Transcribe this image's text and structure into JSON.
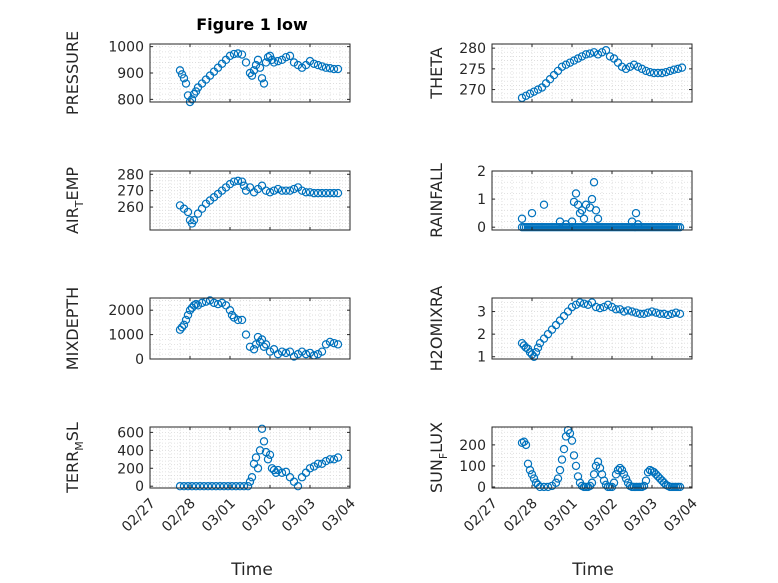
{
  "figure": {
    "title": "Figure 1 low",
    "x_axis_label": "Time",
    "x_tick_labels": [
      "02/27",
      "02/28",
      "03/01",
      "03/02",
      "03/03",
      "03/04"
    ]
  },
  "colors": {
    "marker": "#0072BD",
    "axis": "#262626",
    "grid": "#d9d9d9"
  },
  "chart_data": [
    {
      "type": "scatter",
      "ylabel_main": "PRESSURE",
      "ylabel_sub": "",
      "ylim": [
        790,
        1010
      ],
      "yticks": [
        800,
        900,
        1000
      ],
      "x_unit": "days since 02/27",
      "x": [
        0.75,
        0.8,
        0.85,
        0.9,
        0.95,
        1.0,
        1.05,
        1.1,
        1.15,
        1.2,
        1.3,
        1.4,
        1.5,
        1.6,
        1.7,
        1.8,
        1.9,
        2.0,
        2.1,
        2.2,
        2.3,
        2.4,
        2.5,
        2.55,
        2.6,
        2.65,
        2.7,
        2.75,
        2.8,
        2.85,
        2.9,
        2.95,
        3.0,
        3.05,
        3.1,
        3.2,
        3.3,
        3.4,
        3.5,
        3.6,
        3.7,
        3.8,
        3.9,
        4.0,
        4.1,
        4.2,
        4.3,
        4.4,
        4.5,
        4.6,
        4.7
      ],
      "y": [
        910,
        895,
        880,
        860,
        815,
        790,
        800,
        820,
        830,
        845,
        860,
        875,
        890,
        905,
        920,
        935,
        950,
        965,
        972,
        974,
        970,
        940,
        900,
        890,
        910,
        930,
        950,
        920,
        880,
        860,
        940,
        960,
        965,
        950,
        940,
        945,
        950,
        960,
        965,
        940,
        930,
        920,
        930,
        945,
        935,
        930,
        925,
        920,
        918,
        915,
        915
      ]
    },
    {
      "type": "scatter",
      "ylabel_main": "THETA",
      "ylabel_sub": "",
      "ylim": [
        267,
        281
      ],
      "yticks": [
        270,
        275,
        280
      ],
      "x": [
        0.75,
        0.85,
        0.95,
        1.05,
        1.15,
        1.25,
        1.35,
        1.45,
        1.55,
        1.65,
        1.75,
        1.85,
        1.95,
        2.05,
        2.15,
        2.25,
        2.35,
        2.45,
        2.55,
        2.65,
        2.75,
        2.85,
        2.95,
        3.05,
        3.15,
        3.25,
        3.35,
        3.45,
        3.55,
        3.65,
        3.75,
        3.85,
        3.95,
        4.05,
        4.15,
        4.25,
        4.35,
        4.45,
        4.55,
        4.65,
        4.75
      ],
      "y": [
        268,
        268.5,
        269,
        269.5,
        270,
        270.5,
        271.5,
        272.5,
        273.5,
        274.5,
        275.5,
        276,
        276.5,
        277,
        277.5,
        278,
        278.5,
        278.7,
        279,
        278.5,
        279,
        279.5,
        278,
        277.5,
        276.5,
        275.5,
        275,
        275.5,
        276,
        275.5,
        275,
        274.5,
        274.2,
        274,
        274,
        274,
        274.2,
        274.5,
        274.8,
        275,
        275.3
      ]
    },
    {
      "type": "scatter",
      "ylabel_main": "AIR",
      "ylabel_sub": "T",
      "ylabel_tail": "EMP",
      "ylim": [
        246,
        282
      ],
      "yticks": [
        260,
        270,
        280
      ],
      "x": [
        0.75,
        0.85,
        0.95,
        1.0,
        1.05,
        1.1,
        1.2,
        1.3,
        1.4,
        1.5,
        1.6,
        1.7,
        1.8,
        1.9,
        2.0,
        2.1,
        2.2,
        2.3,
        2.35,
        2.4,
        2.5,
        2.6,
        2.7,
        2.8,
        2.9,
        3.0,
        3.1,
        3.2,
        3.3,
        3.4,
        3.5,
        3.6,
        3.7,
        3.8,
        3.9,
        4.0,
        4.1,
        4.2,
        4.3,
        4.4,
        4.5,
        4.6,
        4.7
      ],
      "y": [
        261,
        259,
        257,
        252,
        250,
        252,
        256,
        259,
        262,
        264,
        266,
        268,
        270,
        272,
        274,
        275.5,
        276,
        275.5,
        273,
        270,
        272,
        269,
        271,
        273,
        270,
        269,
        270,
        271,
        270,
        270,
        270,
        271,
        272,
        270,
        269,
        269,
        268.5,
        268.5,
        268.5,
        268.5,
        268.5,
        268.5,
        268.5
      ]
    },
    {
      "type": "scatter",
      "ylabel_main": "RAINFALL",
      "ylabel_sub": "",
      "ylim": [
        -0.1,
        2.0
      ],
      "yticks": [
        0,
        1,
        2
      ],
      "x": [
        0.75,
        0.8,
        0.85,
        0.9,
        0.95,
        1.0,
        1.05,
        1.1,
        1.15,
        1.2,
        1.25,
        1.3,
        1.35,
        1.4,
        1.45,
        1.5,
        1.55,
        1.6,
        1.65,
        1.7,
        1.75,
        1.8,
        1.85,
        1.9,
        1.95,
        2.0,
        2.05,
        2.1,
        2.15,
        2.2,
        2.25,
        2.3,
        2.35,
        2.4,
        2.45,
        2.5,
        2.55,
        2.6,
        2.65,
        2.7,
        2.75,
        2.8,
        2.85,
        2.9,
        2.95,
        3.0,
        3.05,
        3.1,
        3.15,
        3.2,
        3.25,
        3.3,
        3.35,
        3.4,
        3.45,
        3.5,
        3.55,
        3.6,
        3.65,
        3.7,
        3.75,
        3.8,
        3.85,
        3.9,
        3.95,
        4.0,
        4.05,
        4.1,
        4.15,
        4.2,
        4.25,
        4.3,
        4.35,
        4.4,
        4.45,
        4.5,
        4.55,
        4.6,
        4.65,
        4.7,
        1.3,
        1.7,
        2.05,
        2.1,
        2.15,
        2.2,
        2.25,
        2.3,
        2.35,
        2.45,
        2.5,
        2.55,
        2.6,
        0.75,
        1.0,
        1.85,
        2.0,
        2.65,
        3.5,
        3.6,
        3.65
      ],
      "y": [
        0,
        0,
        0,
        0,
        0,
        0,
        0,
        0,
        0,
        0,
        0,
        0,
        0,
        0,
        0,
        0,
        0,
        0,
        0,
        0,
        0,
        0,
        0,
        0,
        0,
        0,
        0,
        0,
        0,
        0,
        0,
        0,
        0,
        0,
        0,
        0,
        0,
        0,
        0,
        0,
        0,
        0,
        0,
        0,
        0,
        0,
        0,
        0,
        0,
        0,
        0,
        0,
        0,
        0,
        0,
        0,
        0,
        0,
        0,
        0,
        0,
        0,
        0,
        0,
        0,
        0,
        0,
        0,
        0,
        0,
        0,
        0,
        0,
        0,
        0,
        0,
        0,
        0,
        0,
        0,
        0.8,
        0.2,
        0.9,
        1.2,
        0.8,
        0.5,
        0.6,
        0.3,
        0.8,
        0.7,
        1.0,
        1.6,
        0.6,
        0.3,
        0.5,
        0.1,
        0.2,
        0.3,
        0.2,
        0.5,
        0.1
      ]
    },
    {
      "type": "scatter",
      "ylabel_main": "MIXDEPTH",
      "ylabel_sub": "",
      "ylim": [
        0,
        2500
      ],
      "yticks": [
        0,
        1000,
        2000
      ],
      "x": [
        0.75,
        0.8,
        0.85,
        0.9,
        0.95,
        1.0,
        1.05,
        1.1,
        1.15,
        1.2,
        1.3,
        1.4,
        1.5,
        1.6,
        1.7,
        1.8,
        1.9,
        2.0,
        2.05,
        2.1,
        2.2,
        2.3,
        2.4,
        2.5,
        2.6,
        2.65,
        2.7,
        2.75,
        2.8,
        2.85,
        2.9,
        3.0,
        3.1,
        3.2,
        3.3,
        3.4,
        3.5,
        3.6,
        3.7,
        3.8,
        3.9,
        4.0,
        4.1,
        4.2,
        4.3,
        4.4,
        4.5,
        4.6,
        4.7
      ],
      "y": [
        1200,
        1300,
        1400,
        1600,
        1800,
        2000,
        2100,
        2200,
        2250,
        2200,
        2300,
        2350,
        2400,
        2300,
        2250,
        2300,
        2200,
        2000,
        1800,
        1700,
        1600,
        1600,
        1000,
        500,
        400,
        600,
        900,
        700,
        800,
        500,
        600,
        300,
        400,
        200,
        300,
        250,
        300,
        100,
        200,
        300,
        200,
        250,
        150,
        200,
        300,
        600,
        700,
        650,
        600
      ]
    },
    {
      "type": "scatter",
      "ylabel_main": "H2OMIXRA",
      "ylabel_sub": "",
      "ylim": [
        0.9,
        3.6
      ],
      "yticks": [
        1,
        2,
        3
      ],
      "x": [
        0.75,
        0.8,
        0.85,
        0.9,
        0.95,
        1.0,
        1.05,
        1.1,
        1.15,
        1.2,
        1.3,
        1.4,
        1.5,
        1.6,
        1.7,
        1.8,
        1.9,
        2.0,
        2.1,
        2.2,
        2.3,
        2.4,
        2.5,
        2.6,
        2.7,
        2.8,
        2.9,
        3.0,
        3.1,
        3.2,
        3.3,
        3.4,
        3.5,
        3.6,
        3.7,
        3.8,
        3.9,
        4.0,
        4.1,
        4.2,
        4.3,
        4.4,
        4.5,
        4.6,
        4.7
      ],
      "y": [
        1.6,
        1.5,
        1.4,
        1.35,
        1.2,
        1.1,
        1.0,
        1.2,
        1.4,
        1.6,
        1.8,
        2.0,
        2.2,
        2.4,
        2.6,
        2.8,
        3.0,
        3.2,
        3.3,
        3.4,
        3.35,
        3.3,
        3.4,
        3.2,
        3.15,
        3.2,
        3.3,
        3.2,
        3.1,
        3.1,
        3.0,
        3.05,
        3.0,
        2.95,
        2.9,
        2.9,
        2.95,
        3.0,
        2.95,
        2.9,
        2.9,
        2.85,
        2.9,
        2.95,
        2.9
      ]
    },
    {
      "type": "scatter",
      "ylabel_main": "TERR",
      "ylabel_sub": "M",
      "ylabel_tail": "SL",
      "ylim": [
        -20,
        660
      ],
      "yticks": [
        0,
        200,
        400,
        600
      ],
      "x": [
        0.75,
        0.85,
        0.95,
        1.05,
        1.15,
        1.25,
        1.35,
        1.45,
        1.55,
        1.65,
        1.75,
        1.85,
        1.95,
        2.05,
        2.15,
        2.25,
        2.35,
        2.45,
        2.5,
        2.55,
        2.6,
        2.65,
        2.7,
        2.75,
        2.8,
        2.85,
        2.9,
        2.95,
        3.0,
        3.05,
        3.1,
        3.15,
        3.2,
        3.3,
        3.4,
        3.5,
        3.6,
        3.7,
        3.8,
        3.9,
        4.0,
        4.1,
        4.2,
        4.3,
        4.4,
        4.5,
        4.6,
        4.7
      ],
      "y": [
        0,
        0,
        0,
        0,
        0,
        0,
        0,
        0,
        0,
        0,
        0,
        0,
        0,
        0,
        0,
        0,
        0,
        0,
        50,
        100,
        250,
        320,
        200,
        400,
        640,
        500,
        380,
        300,
        350,
        200,
        180,
        150,
        180,
        150,
        160,
        100,
        50,
        0,
        100,
        150,
        200,
        220,
        250,
        250,
        280,
        300,
        300,
        320
      ]
    },
    {
      "type": "scatter",
      "ylabel_main": "SUN",
      "ylabel_sub": "F",
      "ylabel_tail": "LUX",
      "ylim": [
        -5,
        285
      ],
      "yticks": [
        0,
        100,
        200
      ],
      "x": [
        0.75,
        0.8,
        0.85,
        0.9,
        0.95,
        1.0,
        1.05,
        1.1,
        1.15,
        1.2,
        1.3,
        1.4,
        1.5,
        1.6,
        1.65,
        1.7,
        1.75,
        1.8,
        1.85,
        1.9,
        1.95,
        2.0,
        2.05,
        2.1,
        2.15,
        2.2,
        2.25,
        2.3,
        2.35,
        2.4,
        2.45,
        2.5,
        2.55,
        2.6,
        2.65,
        2.7,
        2.75,
        2.8,
        2.85,
        2.9,
        2.95,
        3.0,
        3.05,
        3.1,
        3.15,
        3.2,
        3.25,
        3.3,
        3.35,
        3.4,
        3.45,
        3.5,
        3.55,
        3.6,
        3.65,
        3.7,
        3.75,
        3.8,
        3.85,
        3.9,
        3.95,
        4.0,
        4.05,
        4.1,
        4.15,
        4.2,
        4.25,
        4.3,
        4.35,
        4.4,
        4.45,
        4.5,
        4.55,
        4.6,
        4.65,
        4.7
      ],
      "y": [
        210,
        215,
        200,
        110,
        80,
        60,
        40,
        20,
        10,
        0,
        0,
        0,
        5,
        20,
        40,
        80,
        130,
        180,
        240,
        270,
        255,
        220,
        150,
        100,
        50,
        20,
        5,
        0,
        0,
        0,
        5,
        20,
        60,
        100,
        120,
        90,
        60,
        30,
        10,
        0,
        0,
        0,
        20,
        60,
        80,
        90,
        80,
        60,
        40,
        20,
        5,
        0,
        0,
        0,
        0,
        0,
        0,
        5,
        30,
        70,
        80,
        75,
        70,
        60,
        50,
        40,
        30,
        20,
        10,
        5,
        0,
        0,
        0,
        0,
        0,
        0
      ]
    }
  ]
}
